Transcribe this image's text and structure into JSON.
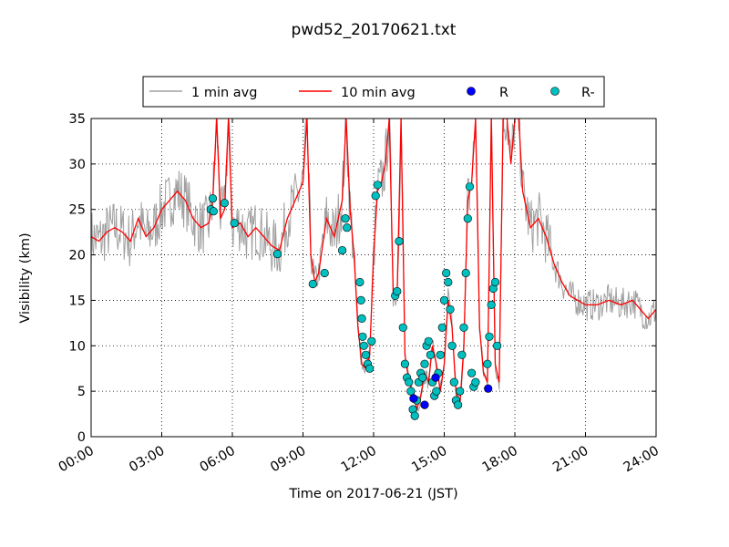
{
  "chart_data": {
    "type": "line",
    "title": "pwd52_20170621.txt",
    "xlabel": "Time on 2017-06-21 (JST)",
    "ylabel": "Visibility (km)",
    "xlim": [
      "00:00",
      "24:00"
    ],
    "ylim": [
      0,
      35
    ],
    "x_tick_labels": [
      "00:00",
      "03:00",
      "06:00",
      "09:00",
      "12:00",
      "15:00",
      "18:00",
      "21:00",
      "24:00"
    ],
    "y_tick_labels": [
      "0",
      "5",
      "10",
      "15",
      "20",
      "25",
      "30",
      "35"
    ],
    "grid": true,
    "legend_position": "top-center",
    "legend": [
      "1 min avg",
      "10 min avg",
      "R",
      "R-"
    ],
    "colors": {
      "1 min avg": "#a0a0a0",
      "10 min avg": "#ff0000",
      "R": "#0000ff",
      "R-": "#00bfbf"
    },
    "series": [
      {
        "name": "10 min avg",
        "x": [
          "00:00",
          "00:20",
          "00:40",
          "01:00",
          "01:20",
          "01:40",
          "02:00",
          "02:20",
          "02:40",
          "03:00",
          "03:20",
          "03:40",
          "04:00",
          "04:20",
          "04:40",
          "05:00",
          "05:10",
          "05:20",
          "05:30",
          "05:40",
          "05:50",
          "06:00",
          "06:20",
          "06:40",
          "07:00",
          "07:20",
          "07:40",
          "08:00",
          "08:20",
          "08:40",
          "09:00",
          "09:10",
          "09:20",
          "09:30",
          "09:40",
          "10:00",
          "10:20",
          "10:40",
          "10:50",
          "11:00",
          "11:10",
          "11:20",
          "11:30",
          "11:40",
          "11:50",
          "12:00",
          "12:10",
          "12:20",
          "12:30",
          "12:40",
          "12:50",
          "13:00",
          "13:10",
          "13:20",
          "13:30",
          "13:40",
          "13:50",
          "14:00",
          "14:10",
          "14:20",
          "14:30",
          "14:40",
          "14:50",
          "15:00",
          "15:10",
          "15:20",
          "15:30",
          "15:40",
          "15:50",
          "16:00",
          "16:10",
          "16:20",
          "16:30",
          "16:40",
          "16:50",
          "17:00",
          "17:10",
          "17:20",
          "17:30",
          "17:40",
          "17:50",
          "18:00",
          "18:10",
          "18:20",
          "18:40",
          "19:00",
          "19:20",
          "19:40",
          "20:00",
          "20:20",
          "20:40",
          "21:00",
          "21:30",
          "22:00",
          "22:30",
          "23:00",
          "23:20",
          "23:40",
          "24:00"
        ],
        "values": [
          22,
          21.5,
          22.5,
          23,
          22.5,
          21.5,
          24,
          22,
          23,
          25,
          26,
          27,
          26,
          24,
          23,
          23.5,
          26,
          35,
          24,
          25,
          35,
          23,
          23.5,
          22,
          23,
          22,
          21,
          20.5,
          24,
          26,
          28,
          35,
          20,
          17,
          18,
          24,
          22,
          26,
          35,
          25,
          20,
          12,
          8,
          7.5,
          9,
          20,
          27,
          28,
          30,
          35,
          16,
          15.5,
          35,
          9,
          6,
          5,
          3,
          4.5,
          7,
          6,
          10,
          8,
          5,
          8,
          15,
          12,
          5,
          3.5,
          10,
          26,
          28,
          35,
          12,
          7,
          6,
          35,
          8,
          6,
          35,
          35,
          30,
          35,
          35,
          27,
          23,
          24,
          22,
          19,
          17,
          15.5,
          15,
          14.5,
          14.5,
          15,
          14.5,
          15,
          14,
          13,
          14
        ]
      },
      {
        "name": "R-",
        "x": [
          "05:05",
          "05:10",
          "05:12",
          "05:40",
          "06:05",
          "07:55",
          "09:25",
          "09:55",
          "10:40",
          "10:48",
          "10:52",
          "11:25",
          "11:28",
          "11:30",
          "11:32",
          "11:35",
          "11:40",
          "11:45",
          "11:50",
          "11:55",
          "12:05",
          "12:10",
          "12:55",
          "13:00",
          "13:05",
          "13:15",
          "13:20",
          "13:25",
          "13:30",
          "13:35",
          "13:40",
          "13:45",
          "13:50",
          "13:55",
          "14:00",
          "14:05",
          "14:10",
          "14:15",
          "14:20",
          "14:25",
          "14:30",
          "14:35",
          "14:40",
          "14:45",
          "14:50",
          "14:55",
          "15:00",
          "15:05",
          "15:10",
          "15:15",
          "15:20",
          "15:25",
          "15:30",
          "15:35",
          "15:40",
          "15:45",
          "15:50",
          "15:55",
          "16:00",
          "16:05",
          "16:10",
          "16:15",
          "16:20",
          "16:50",
          "16:55",
          "17:00",
          "17:05",
          "17:10",
          "17:15"
        ],
        "values": [
          25,
          26.2,
          24.8,
          25.7,
          23.5,
          20.1,
          16.8,
          18,
          20.5,
          24,
          23,
          17,
          15,
          13,
          11,
          10,
          9,
          8,
          7.5,
          10.5,
          26.5,
          27.7,
          15.5,
          16,
          21.5,
          12,
          8,
          6.5,
          6,
          5,
          3,
          2.3,
          4,
          6,
          7,
          6.5,
          8,
          10,
          10.5,
          9,
          6,
          4.5,
          5,
          7,
          9,
          12,
          15,
          18,
          17,
          14,
          10,
          6,
          4,
          3.5,
          5,
          9,
          12,
          18,
          24,
          27.5,
          7,
          5.5,
          6,
          8,
          11,
          14.5,
          16.3,
          17,
          10
        ]
      },
      {
        "name": "R",
        "x": [
          "13:42",
          "14:10",
          "14:38",
          "16:52"
        ],
        "values": [
          4.2,
          3.5,
          6.5,
          5.3
        ]
      }
    ]
  }
}
